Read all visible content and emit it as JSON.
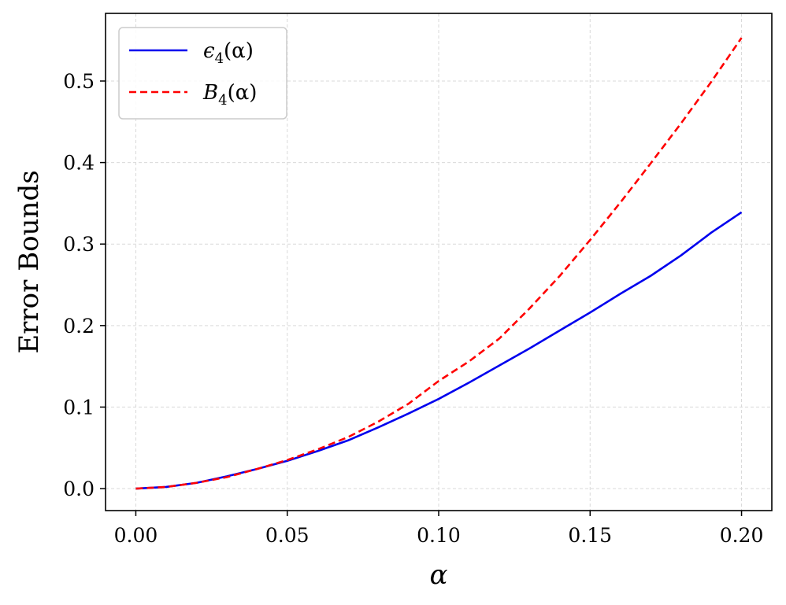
{
  "chart_data": {
    "type": "line",
    "title": "",
    "xlabel": "α",
    "ylabel": "Error Bounds",
    "xlim": [
      -0.01,
      0.21
    ],
    "ylim": [
      -0.027,
      0.583
    ],
    "xticks": [
      0.0,
      0.05,
      0.1,
      0.15,
      0.2
    ],
    "xtick_labels": [
      "0.00",
      "0.05",
      "0.10",
      "0.15",
      "0.20"
    ],
    "yticks": [
      0.0,
      0.1,
      0.2,
      0.3,
      0.4,
      0.5
    ],
    "ytick_labels": [
      "0.0",
      "0.1",
      "0.2",
      "0.3",
      "0.4",
      "0.5"
    ],
    "grid": true,
    "legend_position": "top-left",
    "series": [
      {
        "name_main": "ϵ",
        "name_sub": "4",
        "name_tail": "(α)",
        "color": "#0000ee",
        "style": "solid",
        "x": [
          0.0,
          0.01,
          0.02,
          0.03,
          0.04,
          0.05,
          0.06,
          0.07,
          0.08,
          0.09,
          0.1,
          0.11,
          0.12,
          0.13,
          0.14,
          0.15,
          0.16,
          0.17,
          0.18,
          0.19,
          0.2
        ],
        "y": [
          0.0,
          0.002,
          0.007,
          0.015,
          0.024,
          0.034,
          0.046,
          0.059,
          0.075,
          0.092,
          0.11,
          0.13,
          0.151,
          0.172,
          0.194,
          0.216,
          0.239,
          0.261,
          0.286,
          0.314,
          0.339
        ]
      },
      {
        "name_main": "B",
        "name_sub": "4",
        "name_tail": "(α)",
        "color": "#ff0000",
        "style": "dashed",
        "x": [
          0.0,
          0.01,
          0.02,
          0.03,
          0.04,
          0.05,
          0.06,
          0.07,
          0.08,
          0.09,
          0.1,
          0.11,
          0.12,
          0.13,
          0.14,
          0.15,
          0.16,
          0.17,
          0.18,
          0.19,
          0.2
        ],
        "y": [
          0.0,
          0.002,
          0.007,
          0.014,
          0.024,
          0.035,
          0.048,
          0.063,
          0.082,
          0.104,
          0.132,
          0.156,
          0.184,
          0.221,
          0.261,
          0.305,
          0.351,
          0.399,
          0.448,
          0.499,
          0.553
        ]
      }
    ]
  }
}
